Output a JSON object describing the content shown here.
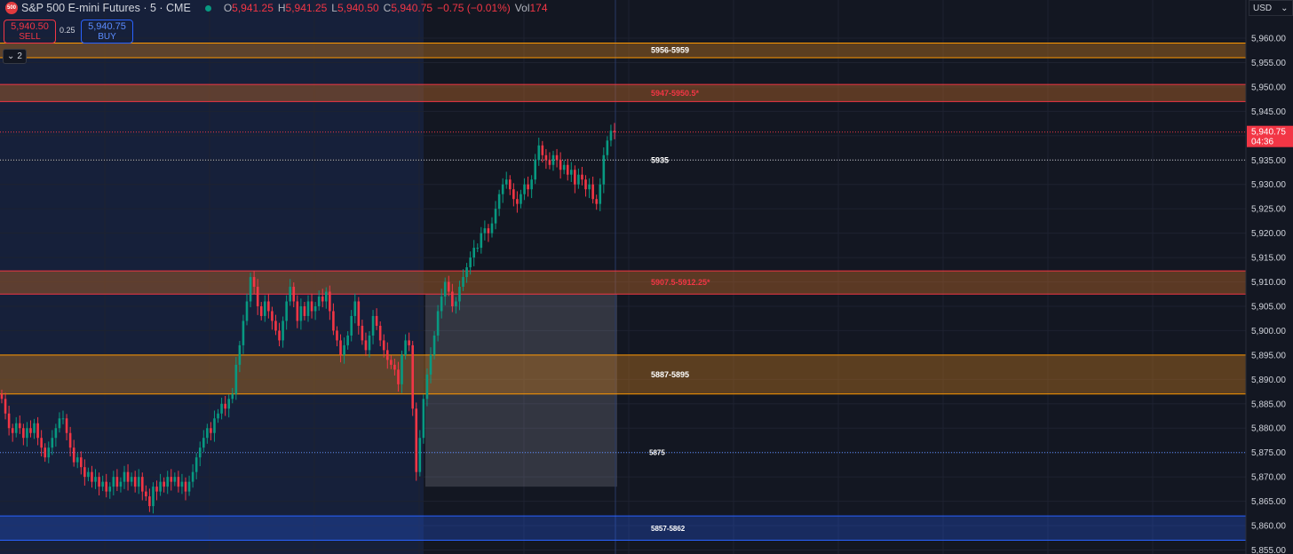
{
  "header": {
    "logo_text": "500",
    "symbol": "S&P 500 E-mini Futures · 5 · CME",
    "ohlc": [
      {
        "label": "O",
        "value": "5,941.25"
      },
      {
        "label": "H",
        "value": "5,941.25"
      },
      {
        "label": "L",
        "value": "5,940.50"
      },
      {
        "label": "C",
        "value": "5,940.75"
      }
    ],
    "change": "−0.75 (−0.01%)",
    "vol_label": "Vol",
    "vol_value": "174",
    "market_open_color": "#089981"
  },
  "trade": {
    "sell_price": "5,940.50",
    "sell_label": "SELL",
    "spread": "0.25",
    "buy_price": "5,940.75",
    "buy_label": "BUY"
  },
  "indicator_toggle": {
    "count": "2"
  },
  "currency": "USD",
  "colors": {
    "up": "#089981",
    "down": "#f23645",
    "zone_orange": "#ff9800",
    "zone_red": "#f23645",
    "zone_blue": "#2962ff",
    "background": "#131722"
  },
  "chart_data": {
    "type": "candlestick",
    "ylim": [
      5855,
      5963
    ],
    "price_axis_ticks": [
      "5,960.00",
      "5,955.00",
      "5,950.00",
      "5,945.00",
      "5,940.00",
      "5,935.00",
      "5,930.00",
      "5,925.00",
      "5,920.00",
      "5,915.00",
      "5,910.00",
      "5,905.00",
      "5,900.00",
      "5,895.00",
      "5,890.00",
      "5,885.00",
      "5,880.00",
      "5,875.00",
      "5,870.00",
      "5,865.00",
      "5,860.00",
      "5,855.00"
    ],
    "current_price": {
      "value": 5940.75,
      "label": "5,940.75",
      "countdown": "04:36"
    },
    "zones": [
      {
        "label": "5956-5959",
        "low": 5956,
        "high": 5959,
        "color": "#ff9800",
        "label_color": "#ffffff"
      },
      {
        "label": "5947-5950.5*",
        "low": 5947,
        "high": 5950.5,
        "color": "#f23645",
        "label_color": "#f23645"
      },
      {
        "label": "5907.5-5912.25*",
        "low": 5907.5,
        "high": 5912.25,
        "color": "#f23645",
        "label_color": "#f23645"
      },
      {
        "label": "5887-5895",
        "low": 5887,
        "high": 5895,
        "color": "#ff9800",
        "label_color": "#ffffff"
      },
      {
        "label": "5857-5862",
        "low": 5857,
        "high": 5862,
        "color": "#2962ff",
        "label_color": "#ffffff"
      }
    ],
    "levels": [
      {
        "label": "5935",
        "value": 5935,
        "color": "#c8c8c8"
      },
      {
        "label": "5875",
        "value": 5875,
        "color": "#5b8cff"
      }
    ],
    "candles_close": [
      5886,
      5883,
      5880,
      5879,
      5881,
      5880,
      5878,
      5880,
      5879,
      5881,
      5878,
      5876,
      5874,
      5876,
      5878,
      5880,
      5882,
      5882,
      5879,
      5876,
      5873,
      5874,
      5872,
      5870,
      5871,
      5869,
      5870,
      5868,
      5869,
      5867,
      5868,
      5870,
      5868,
      5869,
      5871,
      5869,
      5870,
      5868,
      5870,
      5867,
      5866,
      5864,
      5868,
      5867,
      5869,
      5868,
      5870,
      5869,
      5870,
      5868,
      5869,
      5867,
      5869,
      5871,
      5874,
      5876,
      5878,
      5880,
      5879,
      5882,
      5883,
      5885,
      5884,
      5886,
      5887,
      5893,
      5897,
      5902,
      5906,
      5911,
      5909,
      5905,
      5903,
      5906,
      5904,
      5902,
      5900,
      5898,
      5902,
      5906,
      5909,
      5906,
      5902,
      5905,
      5903,
      5906,
      5904,
      5905,
      5907,
      5906,
      5908,
      5904,
      5900,
      5898,
      5895,
      5897,
      5899,
      5903,
      5906,
      5901,
      5898,
      5896,
      5899,
      5903,
      5901,
      5898,
      5896,
      5894,
      5893,
      5892,
      5889,
      5895,
      5898,
      5897,
      5884,
      5871,
      5878,
      5886,
      5891,
      5895,
      5899,
      5904,
      5907,
      5910,
      5908,
      5905,
      5906,
      5909,
      5911,
      5913,
      5915,
      5917,
      5917,
      5920,
      5921,
      5920,
      5922,
      5925,
      5928,
      5930,
      5931,
      5929,
      5927,
      5926,
      5928,
      5930,
      5929,
      5931,
      5935,
      5938,
      5936,
      5935,
      5934,
      5936,
      5935,
      5933,
      5934,
      5932,
      5933,
      5930,
      5932,
      5931,
      5929,
      5930,
      5927,
      5926,
      5930,
      5936,
      5939,
      5941,
      5940.75
    ]
  }
}
